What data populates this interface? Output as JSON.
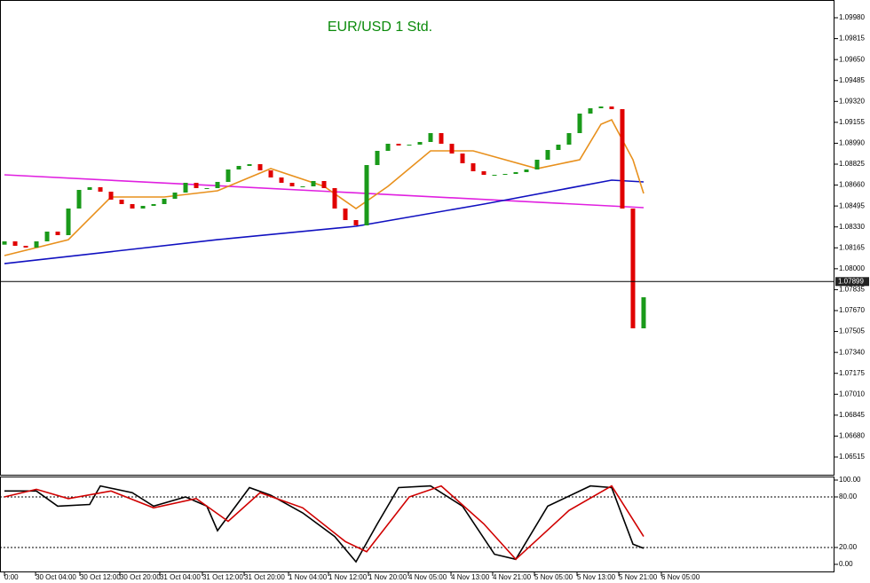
{
  "chart_data": [
    {
      "type": "candlestick",
      "title": "EUR/USD 1 Std.",
      "xlim": [
        -0.42,
        77.92
      ],
      "ylim": [
        1.06375,
        1.1012
      ],
      "open": [
        1.0819,
        1.08216,
        1.08181,
        1.08167,
        1.08216,
        1.08293,
        1.08265,
        1.08475,
        1.08622,
        1.08643,
        1.08608,
        1.08545,
        1.0851,
        1.08475,
        1.08496,
        1.0851,
        1.08552,
        1.08601,
        1.08678,
        1.08636,
        1.08636,
        1.08685,
        1.08783,
        1.08811,
        1.08825,
        1.08776,
        1.0872,
        1.08678,
        1.0865,
        1.0865,
        1.08692,
        1.08636,
        1.08475,
        1.08384,
        1.08342,
        1.08818,
        1.0893,
        1.08986,
        1.08972,
        1.08979,
        1.09,
        1.0907,
        1.08986,
        1.08909,
        1.08832,
        1.08769,
        1.08741,
        1.08741,
        1.08748,
        1.08762,
        1.08783,
        1.0886,
        1.08937,
        1.08979,
        1.0907,
        1.09224,
        1.09266,
        1.0928,
        1.09259,
        1.08475,
        1.0753
      ],
      "close": [
        1.08216,
        1.08181,
        1.08167,
        1.08216,
        1.08293,
        1.08265,
        1.08475,
        1.08622,
        1.08643,
        1.08608,
        1.08545,
        1.0851,
        1.08475,
        1.08496,
        1.0851,
        1.08552,
        1.08601,
        1.08678,
        1.08636,
        1.08636,
        1.08685,
        1.08783,
        1.08811,
        1.08825,
        1.08776,
        1.0872,
        1.08678,
        1.0865,
        1.0865,
        1.08692,
        1.08636,
        1.08475,
        1.08384,
        1.08342,
        1.08818,
        1.0893,
        1.08986,
        1.08972,
        1.08979,
        1.09,
        1.0907,
        1.08986,
        1.08909,
        1.08832,
        1.08769,
        1.08741,
        1.08741,
        1.08748,
        1.08762,
        1.08783,
        1.0886,
        1.08937,
        1.08979,
        1.0907,
        1.09224,
        1.09266,
        1.0928,
        1.09259,
        1.08475,
        1.0753,
        1.07775
      ],
      "up_color": "#1a9a1a",
      "down_color": "#e00000",
      "series": [
        {
          "color": "#e020e0",
          "x": [
            0,
            60
          ],
          "values": [
            1.08741,
            1.08482
          ]
        },
        {
          "color": "#1010c0",
          "x": [
            0,
            20,
            33,
            45,
            57,
            60
          ],
          "values": [
            1.0804,
            1.08229,
            1.08335,
            1.0851,
            1.08699,
            1.08685
          ]
        },
        {
          "color": "#e8901c",
          "x": [
            0,
            6,
            10,
            15,
            20,
            25,
            30,
            33,
            36,
            40,
            44,
            50,
            54,
            56,
            57,
            59,
            60
          ],
          "values": [
            1.08104,
            1.08229,
            1.08566,
            1.08566,
            1.08615,
            1.0879,
            1.0865,
            1.08475,
            1.0865,
            1.0893,
            1.0893,
            1.0879,
            1.0886,
            1.0914,
            1.09175,
            1.0886,
            1.08594
          ]
        }
      ],
      "current_price": 1.07899,
      "yticks": [
        {
          "value": 1.0998,
          "label": "1.09980"
        },
        1.09815,
        {
          "value": 1.0965,
          "label": "1.09650"
        },
        1.09485,
        {
          "value": 1.0932,
          "label": "1.09320"
        },
        1.09155,
        {
          "value": 1.0899,
          "label": "1.08990"
        },
        1.08825,
        {
          "value": 1.0866,
          "label": "1.08660"
        },
        1.08495,
        {
          "value": 1.0833,
          "label": "1.08330"
        },
        1.08165,
        {
          "value": 1.08,
          "label": "1.08000"
        },
        1.07835,
        {
          "value": 1.0767,
          "label": "1.07670"
        },
        1.07505,
        {
          "value": 1.0734,
          "label": "1.07340"
        },
        1.07175,
        {
          "value": 1.0701,
          "label": "1.07010"
        },
        1.06845,
        {
          "value": 1.0668,
          "label": "1.06680"
        },
        1.06515
      ]
    },
    {
      "type": "line",
      "xlim": [
        -0.42,
        77.92
      ],
      "ylim": [
        -9.5,
        104.2
      ],
      "series": [
        {
          "color": "#000000",
          "x": [
            0,
            3,
            5,
            8,
            9,
            12,
            14,
            17,
            19,
            20,
            23,
            25,
            28,
            31,
            33,
            35,
            37,
            40,
            43,
            46,
            48,
            51,
            55,
            57,
            59,
            60
          ],
          "values": [
            87,
            87,
            69,
            71,
            93,
            85,
            69,
            80,
            69,
            40,
            91,
            82,
            61,
            33,
            3,
            48,
            91,
            93,
            69,
            12,
            6,
            69,
            93,
            91,
            24,
            19
          ]
        },
        {
          "color": "#d00000",
          "x": [
            0,
            3,
            6,
            10,
            14,
            18,
            21,
            24,
            28,
            32,
            34,
            38,
            41,
            45,
            48,
            53,
            57,
            60
          ],
          "values": [
            80,
            89,
            78,
            87,
            67,
            78,
            51,
            85,
            67,
            27,
            15,
            80,
            93,
            48,
            6,
            64,
            93,
            33
          ]
        }
      ],
      "levels": [
        80,
        20
      ],
      "yticks": [
        {
          "value": 100,
          "label": "100.00"
        },
        {
          "value": 80,
          "label": "80.00"
        },
        {
          "value": 20,
          "label": "20.00"
        },
        {
          "value": 0,
          "label": "0.00"
        }
      ],
      "xticks": [
        {
          "value": 0,
          "label": "0:00"
        },
        {
          "value": 2.92,
          "label": "30 Oct 04:00"
        },
        {
          "value": 7.08,
          "label": "30 Oct 12:00"
        },
        {
          "value": 10.83,
          "label": "30 Oct 20:00"
        },
        {
          "value": 14.58,
          "label": "31 Oct 04:00"
        },
        {
          "value": 18.58,
          "label": "31 Oct 12:00"
        },
        {
          "value": 22.5,
          "label": "31 Oct 20:00"
        },
        {
          "value": 26.67,
          "label": "1 Nov 04:00"
        },
        {
          "value": 30.42,
          "label": "1 Nov 12:00"
        },
        {
          "value": 34.17,
          "label": "1 Nov 20:00"
        },
        {
          "value": 37.92,
          "label": "4 Nov 05:00"
        },
        {
          "value": 41.92,
          "label": "4 Nov 13:00"
        },
        {
          "value": 45.83,
          "label": "4 Nov 21:00"
        },
        {
          "value": 49.75,
          "label": "5 Nov 05:00"
        },
        {
          "value": 53.75,
          "label": "5 Nov 13:00"
        },
        {
          "value": 57.67,
          "label": "5 Nov 21:00"
        },
        {
          "value": 61.67,
          "label": "6 Nov 05:00"
        }
      ]
    }
  ]
}
